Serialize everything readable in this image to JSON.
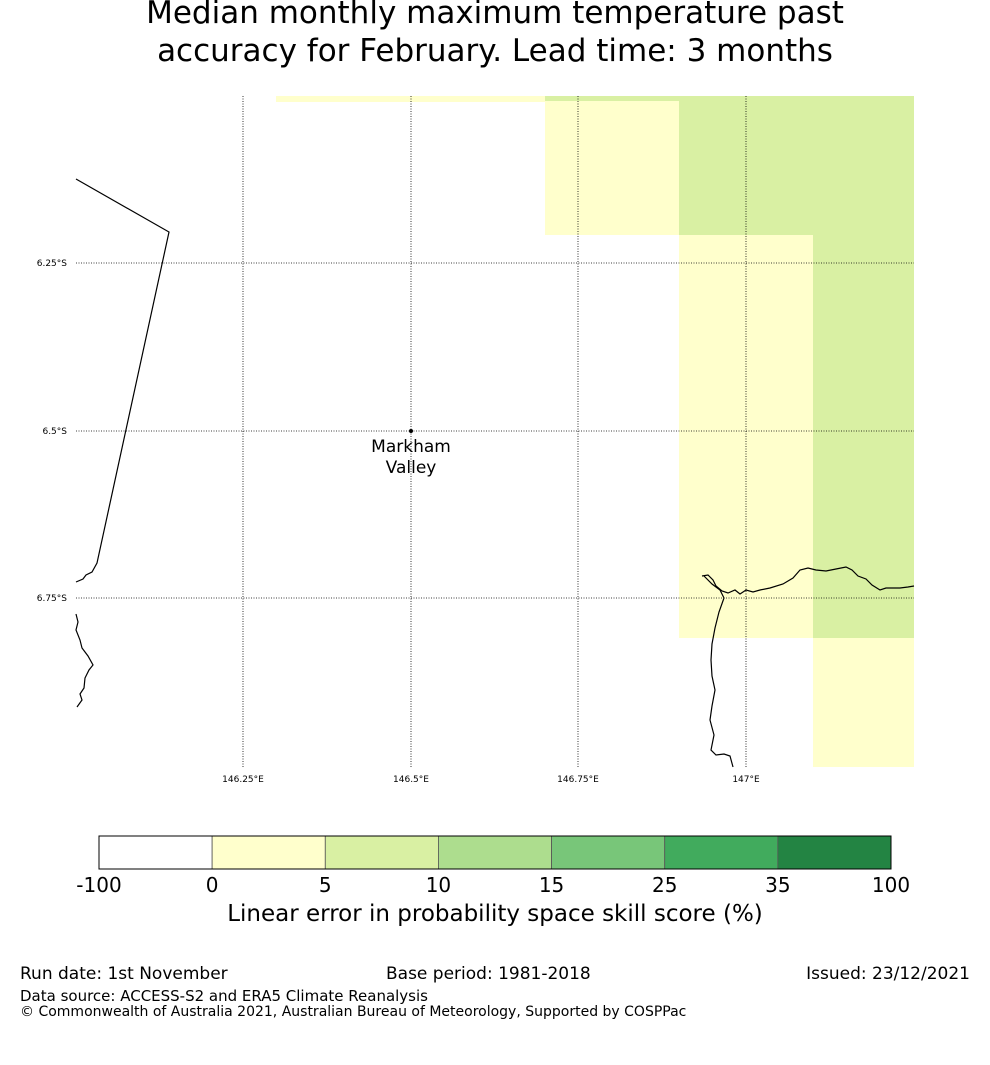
{
  "title": {
    "line1": "Median monthly maximum temperature past",
    "line2": "accuracy for February. Lead time: 3 months"
  },
  "map": {
    "lat_labels": [
      "6.25°S",
      "6.5°S",
      "6.75°S"
    ],
    "lon_labels": [
      "146.25°E",
      "146.5°E",
      "146.75°E",
      "147°E"
    ],
    "place": {
      "name_line1": "Markham",
      "name_line2": "Valley"
    }
  },
  "colorbar": {
    "title": "Linear error in probability space skill score (%)",
    "boundaries": [
      "-100",
      "0",
      "5",
      "10",
      "15",
      "25",
      "35",
      "100"
    ],
    "colors": [
      "#ffffff",
      "#ffffcc",
      "#d9f0a3",
      "#addd8e",
      "#78c679",
      "#41ab5d",
      "#238443"
    ]
  },
  "footer": {
    "run_date": "Run date: 1st November",
    "base_period": "Base period: 1981-2018",
    "issued": "Issued: 23/12/2021",
    "data_source": "Data source: ACCESS-S2 and ERA5 Climate Reanalysis",
    "copyright": "© Commonwealth of Australia 2021, Australian Bureau of Meteorology, Supported by COSPPac"
  }
}
